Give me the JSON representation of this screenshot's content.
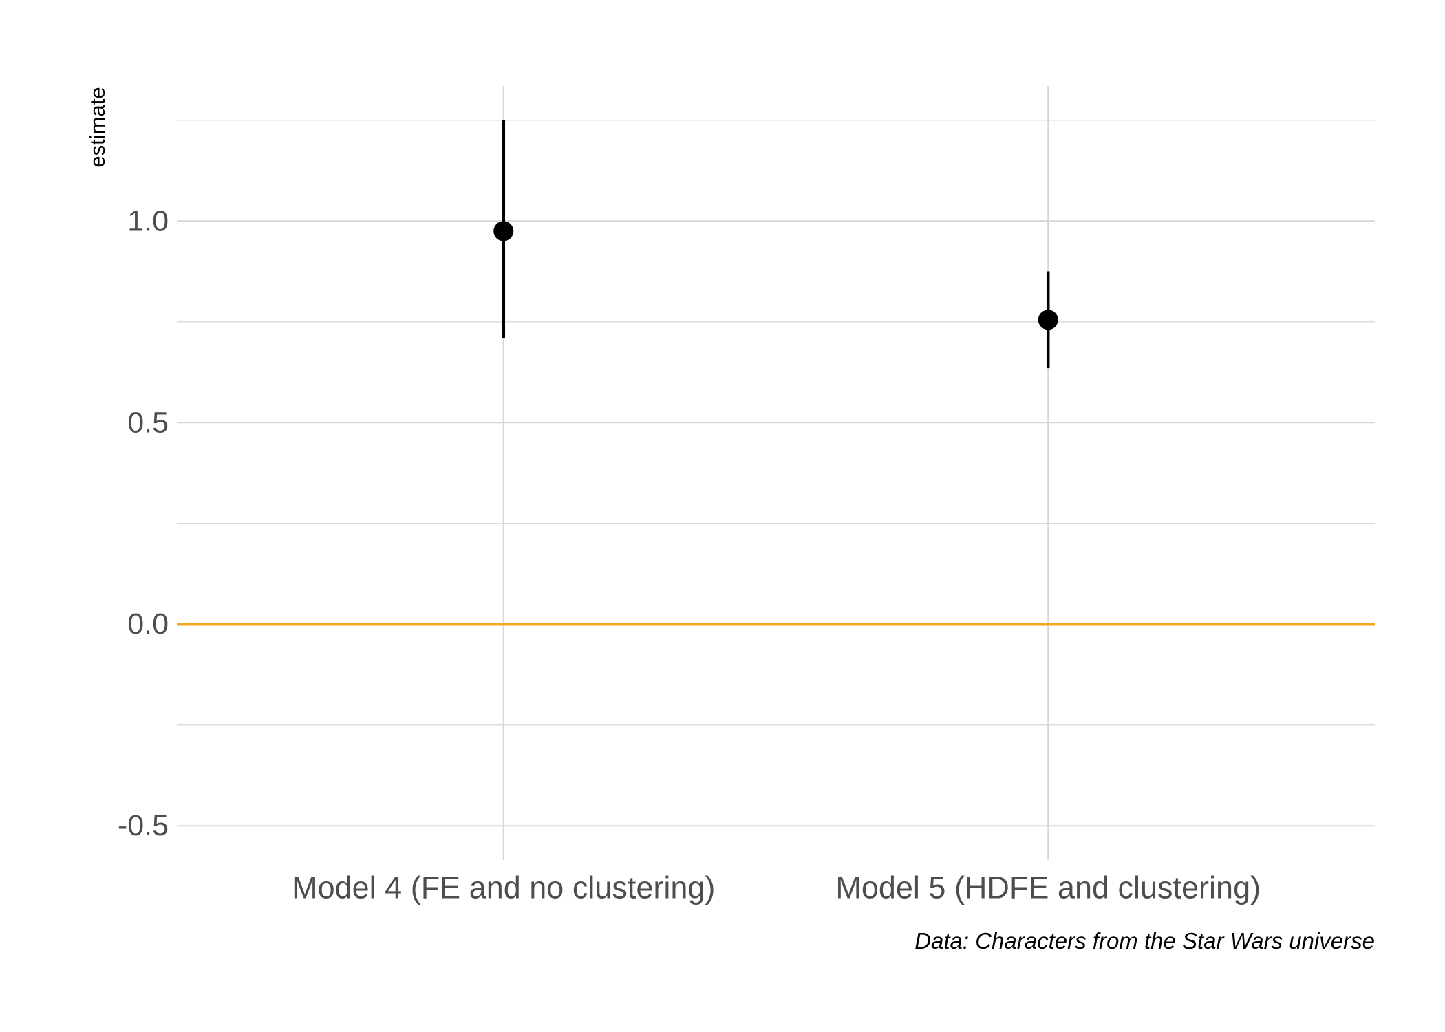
{
  "chart_data": {
    "type": "scatter",
    "title": "",
    "xlabel": "",
    "ylabel": "estimate",
    "caption": "Data: Characters from the Star Wars universe",
    "categories": [
      "Model 4 (FE and no clustering)",
      "Model 5 (HDFE and clustering)"
    ],
    "series": [
      {
        "estimates": [
          0.975,
          0.755
        ],
        "conf_low": [
          0.71,
          0.635
        ],
        "conf_high": [
          1.25,
          0.875
        ]
      }
    ],
    "ylim": [
      -0.585,
      1.335
    ],
    "yticks": [
      -0.5,
      0.0,
      0.5,
      1.0
    ],
    "ytick_labels": [
      "-0.5",
      "0.0",
      "0.5",
      "1.0"
    ],
    "reference_line": {
      "y": 0.0,
      "color": "#F5A623"
    },
    "point_color": "#000000",
    "grid": true,
    "legend": "none"
  }
}
